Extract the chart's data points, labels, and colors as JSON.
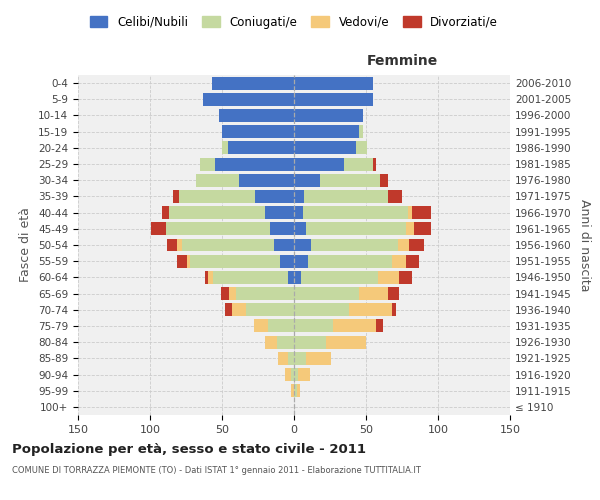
{
  "age_groups": [
    "100+",
    "95-99",
    "90-94",
    "85-89",
    "80-84",
    "75-79",
    "70-74",
    "65-69",
    "60-64",
    "55-59",
    "50-54",
    "45-49",
    "40-44",
    "35-39",
    "30-34",
    "25-29",
    "20-24",
    "15-19",
    "10-14",
    "5-9",
    "0-4"
  ],
  "birth_years": [
    "≤ 1910",
    "1911-1915",
    "1916-1920",
    "1921-1925",
    "1926-1930",
    "1931-1935",
    "1936-1940",
    "1941-1945",
    "1946-1950",
    "1951-1955",
    "1956-1960",
    "1961-1965",
    "1966-1970",
    "1971-1975",
    "1976-1980",
    "1981-1985",
    "1986-1990",
    "1991-1995",
    "1996-2000",
    "2001-2005",
    "2006-2010"
  ],
  "colors": {
    "celibi": "#4472c4",
    "coniugati": "#c5d9a0",
    "vedovi": "#f5c97a",
    "divorziati": "#c0392b"
  },
  "maschi": {
    "celibi": [
      0,
      0,
      0,
      0,
      0,
      0,
      0,
      0,
      4,
      10,
      14,
      17,
      20,
      27,
      38,
      55,
      46,
      50,
      52,
      63,
      57
    ],
    "coniugati": [
      0,
      0,
      2,
      4,
      12,
      18,
      33,
      40,
      52,
      62,
      64,
      72,
      67,
      53,
      30,
      10,
      4,
      0,
      0,
      0,
      0
    ],
    "vedovi": [
      0,
      2,
      4,
      7,
      8,
      10,
      10,
      5,
      4,
      2,
      3,
      0,
      0,
      0,
      0,
      0,
      0,
      0,
      0,
      0,
      0
    ],
    "divorziati": [
      0,
      0,
      0,
      0,
      0,
      0,
      5,
      6,
      2,
      7,
      7,
      10,
      5,
      4,
      0,
      0,
      0,
      0,
      0,
      0,
      0
    ]
  },
  "femmine": {
    "nubili": [
      0,
      0,
      0,
      0,
      0,
      0,
      0,
      0,
      5,
      10,
      12,
      8,
      6,
      7,
      18,
      35,
      43,
      45,
      48,
      55,
      55
    ],
    "coniugati": [
      0,
      2,
      3,
      8,
      22,
      27,
      38,
      45,
      53,
      58,
      60,
      70,
      73,
      58,
      42,
      20,
      8,
      3,
      0,
      0,
      0
    ],
    "vedovi": [
      0,
      2,
      8,
      18,
      28,
      30,
      30,
      20,
      15,
      10,
      8,
      5,
      3,
      0,
      0,
      0,
      0,
      0,
      0,
      0,
      0
    ],
    "divorziati": [
      0,
      0,
      0,
      0,
      0,
      5,
      3,
      8,
      9,
      9,
      10,
      12,
      13,
      10,
      5,
      2,
      0,
      0,
      0,
      0,
      0
    ]
  },
  "xlim": 150,
  "title": "Popolazione per età, sesso e stato civile - 2011",
  "subtitle": "COMUNE DI TORRAZZA PIEMONTE (TO) - Dati ISTAT 1° gennaio 2011 - Elaborazione TUTTITALIA.IT",
  "ylabel_left": "Fasce di età",
  "ylabel_right": "Anni di nascita",
  "legend_labels": [
    "Celibi/Nubili",
    "Coniugati/e",
    "Vedovi/e",
    "Divorziati/e"
  ]
}
